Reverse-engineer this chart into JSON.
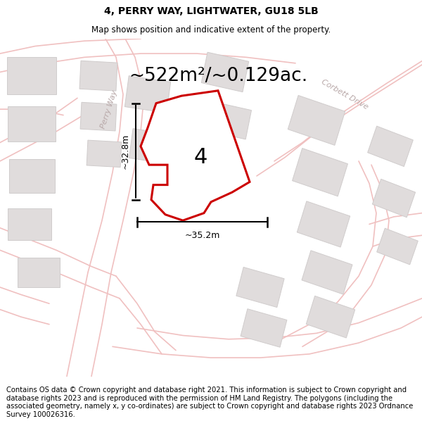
{
  "title": "4, PERRY WAY, LIGHTWATER, GU18 5LB",
  "subtitle": "Map shows position and indicative extent of the property.",
  "area_label": "~522m²/~0.129ac.",
  "width_label": "~35.2m",
  "height_label": "~32.8m",
  "number_label": "4",
  "footer": "Contains OS data © Crown copyright and database right 2021. This information is subject to Crown copyright and database rights 2023 and is reproduced with the permission of HM Land Registry. The polygons (including the associated geometry, namely x, y co-ordinates) are subject to Crown copyright and database rights 2023 Ordnance Survey 100026316.",
  "bg_color": "#ffffff",
  "road_color": "#f0c0c0",
  "road_lw": 1.0,
  "block_color": "#e0dcdc",
  "block_edge": "#d0cccc",
  "property_fill": "#ffffff",
  "property_edge": "#cc0000",
  "property_lw": 2.2,
  "title_fontsize": 10,
  "subtitle_fontsize": 8.5,
  "area_fontsize": 19,
  "label_fontsize": 9,
  "footer_fontsize": 7.2,
  "road_labels_color": "#b8a8a8"
}
